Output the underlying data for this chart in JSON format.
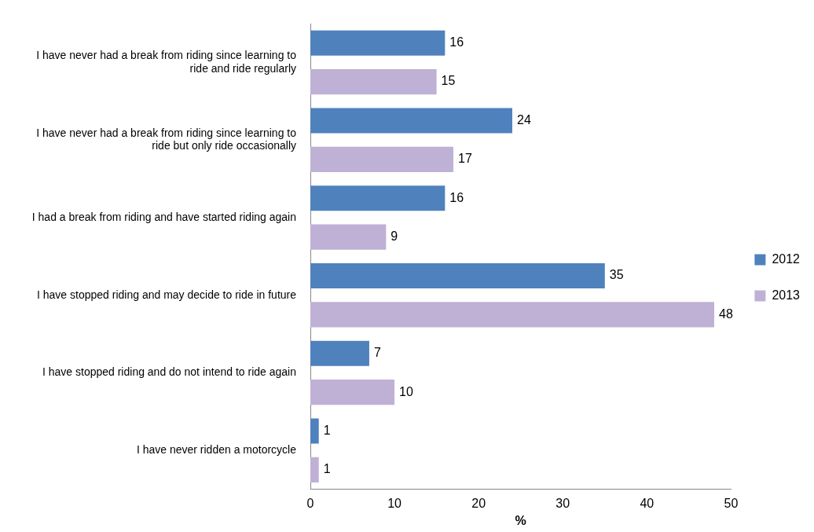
{
  "chart_data": {
    "type": "bar",
    "orientation": "horizontal",
    "xlabel": "%",
    "categories": [
      "I have never had a break from riding since learning to ride and ride regularly",
      "I have never had a break from riding since learning to ride but only ride occasionally",
      "I had a break from riding and have started riding again",
      "I have stopped riding and may decide to ride in future",
      "I have stopped riding and do not intend to ride again",
      "I have never ridden a motorcycle"
    ],
    "series": [
      {
        "name": "2012",
        "color": "#4f81bd",
        "values": [
          16,
          24,
          16,
          35,
          7,
          1
        ]
      },
      {
        "name": "2013",
        "color": "#bfb1d5",
        "values": [
          15,
          17,
          9,
          48,
          10,
          1
        ]
      }
    ],
    "xlim": [
      0,
      50
    ],
    "xticks": [
      0,
      10,
      20,
      30,
      40,
      50
    ],
    "grid": false,
    "legend": "right",
    "data_labels": true
  }
}
